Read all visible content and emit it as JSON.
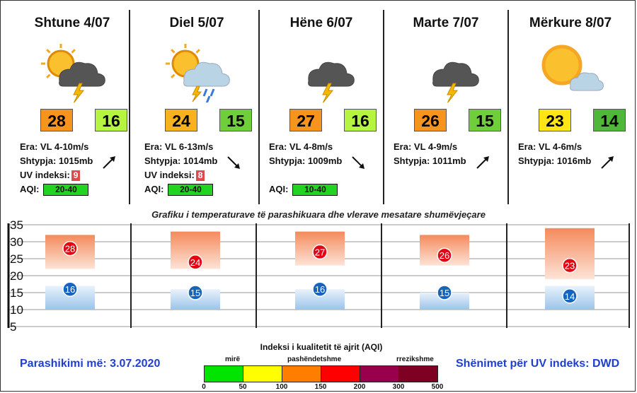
{
  "days": [
    {
      "title": "Shtune 4/07",
      "icon": "sun-cloud-thunder-icon",
      "tmax": "28",
      "tmin": "16",
      "tmax_color": "#f7941d",
      "tmin_color": "#b5f542",
      "wind": "Era: VL 4-10m/s",
      "pressure": "Shtypja: 1015mb",
      "uv_label": "UV indeksi:",
      "uv": "9",
      "uv_color": "#e04a4a",
      "aqi_label": "AQI:",
      "aqi": "20-40",
      "aqi_color": "#22d322",
      "arrow": "up-right"
    },
    {
      "title": "Diel 5/07",
      "icon": "sun-cloud-rain-thunder-icon",
      "tmax": "24",
      "tmin": "15",
      "tmax_color": "#f7b21d",
      "tmin_color": "#6fcf3a",
      "wind": "Era: VL 6-13m/s",
      "pressure": "Shtypja: 1014mb",
      "uv_label": "UV indeksi:",
      "uv": "8",
      "uv_color": "#e04a4a",
      "aqi_label": "AQI:",
      "aqi": "20-40",
      "aqi_color": "#22d322",
      "arrow": "down-right"
    },
    {
      "title": "Hëne 6/07",
      "icon": "cloud-thunder-icon",
      "tmax": "27",
      "tmin": "16",
      "tmax_color": "#f7941d",
      "tmin_color": "#b5f542",
      "wind": "Era: VL 4-8m/s",
      "pressure": "Shtypja: 1009mb",
      "aqi_label": "AQI:",
      "aqi": "10-40",
      "aqi_color": "#22d322",
      "arrow": "down-right"
    },
    {
      "title": "Marte 7/07",
      "icon": "cloud-thunder-icon",
      "tmax": "26",
      "tmin": "15",
      "tmax_color": "#f7941d",
      "tmin_color": "#6fcf3a",
      "wind": "Era: VL 4-9m/s",
      "pressure": "Shtypja: 1011mb",
      "arrow": "up-right"
    },
    {
      "title": "Mërkure 8/07",
      "icon": "sun-cloud-icon",
      "tmax": "23",
      "tmin": "14",
      "tmax_color": "#fde516",
      "tmin_color": "#4fb83a",
      "wind": "Era: VL 4-6m/s",
      "pressure": "Shtypja: 1016mb",
      "arrow": "up-right"
    }
  ],
  "chart_data": {
    "type": "bar",
    "title": "Grafiku i temperaturave të parashikuara dhe vlerave mesatare shumëvjeçare",
    "ylim": [
      5,
      35
    ],
    "yticks": [
      5,
      10,
      15,
      20,
      25,
      30,
      35
    ],
    "categories": [
      "Shtune 4/07",
      "Diel 5/07",
      "Hëne 6/07",
      "Marte 7/07",
      "Mërkure 8/07"
    ],
    "series": [
      {
        "kind": "max",
        "values": [
          28,
          24,
          27,
          26,
          23
        ],
        "band_top": [
          32,
          33,
          33,
          32,
          34
        ],
        "band_bottom": [
          22,
          22,
          23,
          23,
          19
        ]
      },
      {
        "kind": "min",
        "values": [
          16,
          15,
          16,
          15,
          14
        ],
        "band_top": [
          17,
          16,
          16,
          15,
          17
        ],
        "band_bottom": [
          10,
          10,
          10,
          10,
          10
        ]
      }
    ]
  },
  "footer": {
    "forecast_date": "Parashikimi më: 3.07.2020",
    "uv_note": "Shënimet për UV indeks: DWD"
  },
  "aqi_scale": {
    "title": "Indeksi i kualitetit të ajrit (AQI)",
    "labels": [
      "mirë",
      "pashëndetshme",
      "rrezikshme"
    ],
    "ticks": [
      "0",
      "50",
      "100",
      "150",
      "200",
      "300",
      "500"
    ],
    "colors": [
      "#00e400",
      "#ffff00",
      "#ff7e00",
      "#ff0000",
      "#99004c",
      "#7e0023"
    ]
  }
}
